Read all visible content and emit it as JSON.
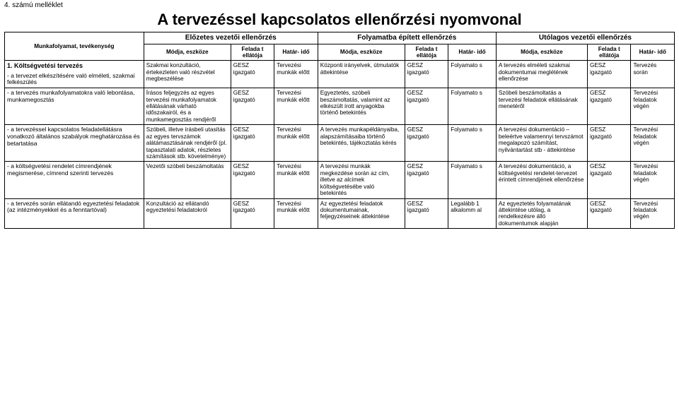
{
  "appendix": "4. számú melléklet",
  "title": "A tervezéssel kapcsolatos ellenőrzési nyomvonal",
  "header": {
    "col0": "Munkafolyamat, tevékenység",
    "group1": "Előzetes vezetői ellenőrzés",
    "group2": "Folyamatba épített ellenőrzés",
    "group3": "Utólagos vezetői ellenőrzés",
    "modja": "Módja, eszköze",
    "feladat": "Felada t ellátója",
    "hatar": "Határ- idő"
  },
  "section1_title": "1. Költségvetési tervezés",
  "rows": [
    {
      "label": "- a tervezet elkészítésére való elméleti, szakmai felkészülés",
      "c1": "Szakmai konzultáció, értekezleten való részvétel megbeszélése",
      "c2": "GESZ igazgató",
      "c3": "Tervezési munkák előtt",
      "c4": "Központi irányelvek, útmutatók áttekintése",
      "c5": "GESZ igazgató",
      "c6": "Folyamato s",
      "c7": "A tervezés elméleti szakmai dokumentumai meglétének ellenőrzése",
      "c8": "GESZ igazgató",
      "c9": "Tervezés során"
    },
    {
      "label": "- a tervezés munkafolyamatokra való lebontása, munkamegosztás",
      "c1": "Írásos feljegyzés az egyes tervezési munkafolyamatok ellátásának várható időszakairól, és a munkamegosztás rendjéről",
      "c2": "GESZ igazgató",
      "c3": "Tervezési munkák előtt",
      "c4": "Egyeztetés, szóbeli beszámoltatás, valamint az elkészült írott anyagokba történő betekintés",
      "c5": "GESZ igazgató",
      "c6": "Folyamato s",
      "c7": "Szóbeli beszámoltatás a tervezési feladatok ellátásának menetéről",
      "c8": "GESZ igazgató",
      "c9": "Tervezési feladatok végén"
    },
    {
      "label": "- a tervezéssel kapcsolatos feladatellátásra vonatkozó általános szabályok meghatározása és betartatása",
      "c1": "Szóbeli, illetve írásbeli utasítás az egyes tervszámok alátámasztásának rendjéről (pl. tapasztalati adatok, részletes számítások stb. követelménye)",
      "c2": "GESZ igazgató",
      "c3": "Tervezési munkák előtt",
      "c4": "A tervezés munkapéldányaiba, alapszámításaiba történő betekintés, tájékoztatás kérés",
      "c5": "GESZ igazgató",
      "c6": "Folyamato s",
      "c7": "A tervezési dokumentáció – beleértve valamennyi tervszámot megalapozó számítást, nyilvántartást stb - áttekintése",
      "c8": "GESZ igazgató",
      "c9": "Tervezési feladatok végén"
    },
    {
      "label": "- a költségvetési rendelet címrendjének megismerése, címrend szerinti tervezés",
      "c1": "Vezetői szóbeli beszámoltatás",
      "c2": "GESZ igazgató",
      "c3": "Tervezési munkák előtt",
      "c4": "A tervezési munkák megkezdése során az cím, illetve az alcímek költségvetésébe való betekintés",
      "c5": "GESZ igazgató",
      "c6": "Folyamato s",
      "c7": "A tervezési dokumentáció, a költségvetési rendelet-tervezet érintett címrendjének ellenőrzése",
      "c8": "GESZ igazgató",
      "c9": "Tervezési feladatok végén"
    },
    {
      "label": "- a tervezés során ellátandó egyeztetési feladatok (az intézményekkel és a fenntartóval)",
      "c1": "Konzultáció az ellátandó egyeztetési feladatokról",
      "c2": "GESZ igazgató",
      "c3": "Tervezési munkák előtt",
      "c4": "Az egyeztetési feladatok dokumentumainak, feljegyzéseinek áttekintése",
      "c5": "GESZ igazgató",
      "c6": "Legalább 1 alkalomm al",
      "c7": "Az egyeztetés folyamatának áttekintése utólag, a rendelkezésre álló dokumentumok alapján",
      "c8": "GESZ igazgató",
      "c9": "Tervezési feladatok végén"
    }
  ]
}
